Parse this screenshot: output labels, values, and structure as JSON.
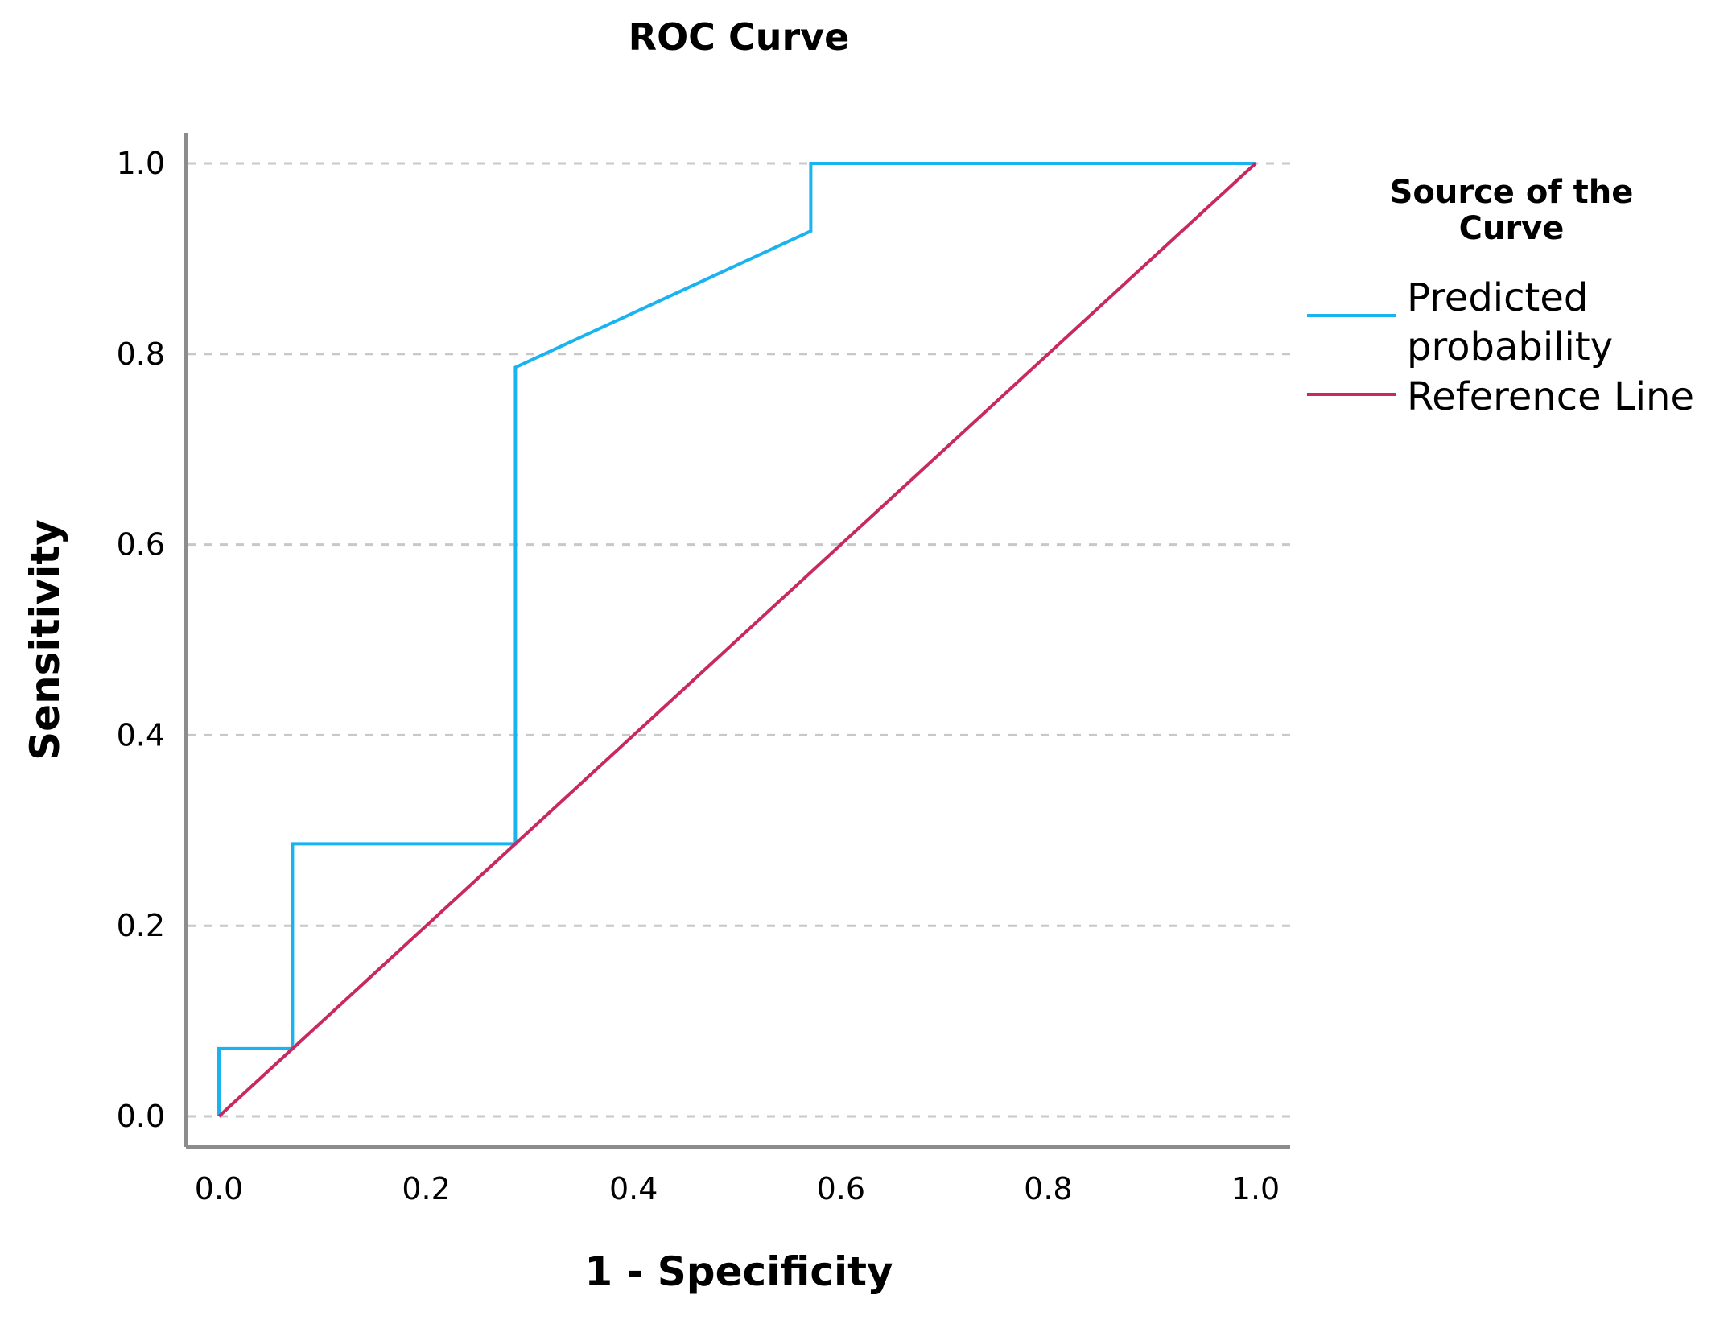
{
  "chart_data": {
    "type": "line",
    "title": "ROC Curve",
    "xlabel": "1 - Specificity",
    "ylabel": "Sensitivity",
    "xlim": [
      0,
      1
    ],
    "ylim": [
      0,
      1
    ],
    "x_ticks": [
      "0.0",
      "0.2",
      "0.4",
      "0.6",
      "0.8",
      "1.0"
    ],
    "y_ticks": [
      "0.0",
      "0.2",
      "0.4",
      "0.6",
      "0.8",
      "1.0"
    ],
    "grid": "horizontal dashed",
    "legend": {
      "title_lines": [
        "Source of the",
        "Curve"
      ],
      "placement": "right"
    },
    "series": [
      {
        "name": "Predicted probability",
        "label_lines": [
          "Predicted",
          "probability"
        ],
        "color": "#1ab3f0",
        "x": [
          0.0,
          0.0,
          0.071,
          0.071,
          0.286,
          0.286,
          0.571,
          0.571,
          1.0
        ],
        "y": [
          0.0,
          0.071,
          0.071,
          0.286,
          0.286,
          0.786,
          0.929,
          1.0,
          1.0
        ]
      },
      {
        "name": "Reference Line",
        "label_lines": [
          "Reference Line"
        ],
        "color": "#c8295e",
        "x": [
          0.0,
          1.0
        ],
        "y": [
          0.0,
          1.0
        ]
      }
    ]
  }
}
